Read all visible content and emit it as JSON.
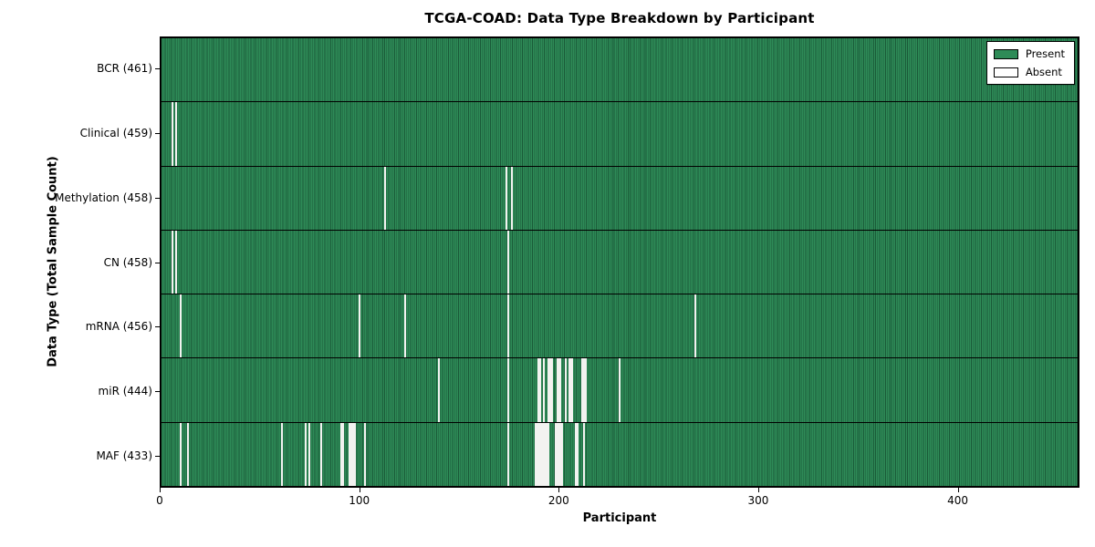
{
  "title": "TCGA-COAD: Data Type Breakdown by Participant",
  "chart_data": {
    "type": "heatmap",
    "title": "TCGA-COAD: Data Type Breakdown by Participant",
    "xlabel": "Participant",
    "ylabel": "Data Type (Total Sample Count)",
    "x_ticks": [
      0,
      100,
      200,
      300,
      400
    ],
    "x_range": [
      0,
      461
    ],
    "total_participants": 461,
    "grid": false,
    "legend": {
      "position": "upper right",
      "entries": [
        {
          "label": "Present",
          "color": "#2e8b57"
        },
        {
          "label": "Absent",
          "color": "#ffffff"
        }
      ]
    },
    "colors": {
      "present": "#2e8b57",
      "present_edge": "#1a5a38",
      "absent": "#f2f2f0",
      "axis": "#000000"
    },
    "rows": [
      {
        "data_type": "BCR",
        "count": 461,
        "label": "BCR (461)",
        "absent_participants": []
      },
      {
        "data_type": "Clinical",
        "count": 459,
        "label": "Clinical (459)",
        "absent_participants": [
          5,
          7
        ]
      },
      {
        "data_type": "Methylation",
        "count": 458,
        "label": "Methylation (458)",
        "absent_participants": [
          112,
          173,
          176
        ]
      },
      {
        "data_type": "CN",
        "count": 458,
        "label": "CN (458)",
        "absent_participants": [
          5,
          7,
          174
        ]
      },
      {
        "data_type": "mRNA",
        "count": 456,
        "label": "mRNA (456)",
        "absent_participants": [
          9,
          99,
          122,
          174,
          268
        ]
      },
      {
        "data_type": "miR",
        "count": 444,
        "label": "miR (444)",
        "absent_participants": [
          139,
          174,
          189,
          190,
          192,
          194,
          195,
          196,
          199,
          200,
          203,
          205,
          206,
          211,
          212,
          213,
          230
        ]
      },
      {
        "data_type": "MAF",
        "count": 433,
        "label": "MAF (433)",
        "absent_participants": [
          9,
          13,
          60,
          72,
          74,
          80,
          90,
          91,
          94,
          95,
          96,
          97,
          102,
          174,
          188,
          189,
          190,
          191,
          192,
          193,
          194,
          198,
          199,
          200,
          201,
          208,
          209,
          212
        ]
      }
    ]
  }
}
